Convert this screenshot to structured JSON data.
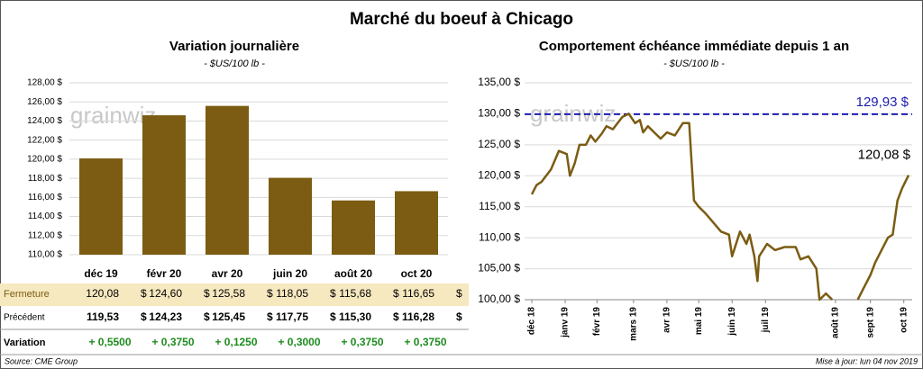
{
  "title": "Marché du boeuf à Chicago",
  "chart_data": [
    {
      "type": "bar",
      "title": "Variation journalière",
      "subtitle": "- $US/100 lb -",
      "watermark": "grainwiz",
      "categories": [
        "déc 19",
        "févr 20",
        "avr 20",
        "juin 20",
        "août 20",
        "oct 20"
      ],
      "values": [
        120.08,
        124.6,
        125.58,
        118.05,
        115.68,
        116.65
      ],
      "value_labels": [
        "120,08",
        "124,60",
        "125,58",
        "118,05",
        "115,68",
        "116,65"
      ],
      "color": "#7b5c12",
      "grid": true,
      "ylim": [
        110,
        128
      ],
      "yticks": [
        {
          "value": 110,
          "label": "110,00 $"
        },
        {
          "value": 112,
          "label": "112,00 $"
        },
        {
          "value": 114,
          "label": "114,00 $"
        },
        {
          "value": 116,
          "label": "116,00 $"
        },
        {
          "value": 118,
          "label": "118,00 $"
        },
        {
          "value": 120,
          "label": "120,00 $"
        },
        {
          "value": 122,
          "label": "122,00 $"
        },
        {
          "value": 124,
          "label": "124,00 $"
        },
        {
          "value": 126,
          "label": "126,00 $"
        },
        {
          "value": 128,
          "label": "128,00 $"
        }
      ]
    },
    {
      "type": "line",
      "title": "Comportement échéance immédiate depuis 1 an",
      "subtitle": "- $US/100 lb -",
      "watermark": "grainwiz",
      "x": [
        0,
        3,
        6,
        12,
        17,
        22,
        24,
        27,
        30,
        34,
        37,
        40,
        44,
        47,
        51,
        57,
        61,
        65,
        68,
        70,
        73,
        77,
        81,
        85,
        90,
        95,
        99,
        102,
        105,
        109,
        114,
        119,
        124,
        126,
        131,
        135,
        137,
        140,
        142,
        143,
        148,
        153,
        159,
        166,
        169,
        174,
        179,
        181,
        185,
        189,
        196,
        205,
        209,
        213,
        216,
        220,
        224,
        227,
        230,
        233,
        237
      ],
      "values": [
        117,
        118.5,
        119,
        121,
        124,
        123.5,
        120,
        122,
        125,
        125,
        126.5,
        125.5,
        126.8,
        128,
        127.5,
        129.5,
        130,
        128.5,
        129,
        127,
        128,
        127,
        126,
        127,
        126.5,
        128.5,
        128.5,
        116,
        115,
        114,
        112.5,
        111,
        110.5,
        107,
        111,
        109,
        110.5,
        107,
        103,
        107,
        109,
        108,
        108.5,
        108.5,
        106.5,
        107,
        105,
        100,
        101,
        100,
        null,
        100,
        102,
        104,
        106,
        108,
        110,
        110.5,
        116,
        118,
        120.08
      ],
      "end_label": "120,08 $",
      "color": "#7b5c12",
      "grid": true,
      "reference": {
        "value": 129.93,
        "label": "129,93 $",
        "color": "#1c1cb0"
      },
      "xlim": [
        0,
        237
      ],
      "xticks": [
        {
          "value": 0,
          "label": "déc 18"
        },
        {
          "value": 21,
          "label": "janv 19"
        },
        {
          "value": 41,
          "label": "févr 19"
        },
        {
          "value": 64,
          "label": "mars 19"
        },
        {
          "value": 85,
          "label": "avr 19"
        },
        {
          "value": 105,
          "label": "mai 19"
        },
        {
          "value": 126,
          "label": "juin 19"
        },
        {
          "value": 147,
          "label": "juil 19"
        },
        {
          "value": 191,
          "label": "août 19"
        },
        {
          "value": 213,
          "label": "sept 19"
        },
        {
          "value": 234,
          "label": "oct 19"
        }
      ],
      "ylim": [
        100,
        135
      ],
      "yticks": [
        {
          "value": 100,
          "label": "100,00 $"
        },
        {
          "value": 105,
          "label": "105,00 $"
        },
        {
          "value": 110,
          "label": "110,00 $"
        },
        {
          "value": 115,
          "label": "115,00 $"
        },
        {
          "value": 120,
          "label": "120,00 $"
        },
        {
          "value": 125,
          "label": "125,00 $"
        },
        {
          "value": 130,
          "label": "130,00 $"
        },
        {
          "value": 135,
          "label": "135,00 $"
        }
      ]
    }
  ],
  "table": {
    "unit": "$",
    "rows": [
      {
        "label": "Fermeture"
      },
      {
        "label": "Précédent",
        "values": [
          "119,53",
          "124,23",
          "125,45",
          "117,75",
          "115,30",
          "116,28"
        ]
      },
      {
        "label": "Variation",
        "values": [
          "+ 0,5500",
          "+ 0,3750",
          "+ 0,1250",
          "+ 0,3000",
          "+ 0,3750",
          "+ 0,3750"
        ]
      }
    ]
  },
  "source": "Source: CME Group",
  "updated": "Mise à jour: lun 04 nov 2019"
}
